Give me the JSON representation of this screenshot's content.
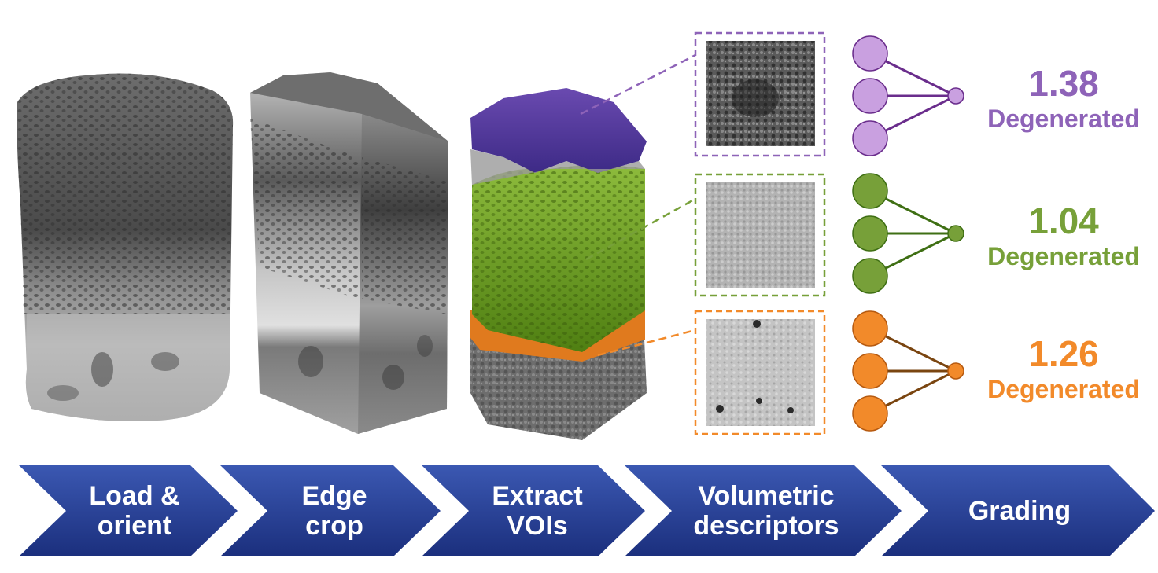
{
  "colors": {
    "purple": "#8e63b8",
    "purple_dark": "#6a2d8c",
    "purple_light": "#c9a0e0",
    "green": "#77a039",
    "green_dark": "#3f6f14",
    "orange": "#f28a2a",
    "orange_dark": "#7a4510",
    "chevron_top": "#3b58b2",
    "chevron_bottom": "#1b2f7d"
  },
  "pipeline": [
    {
      "line1": "Load &",
      "line2": "orient"
    },
    {
      "line1": "Edge",
      "line2": "crop"
    },
    {
      "line1": "Extract",
      "line2": "VOIs"
    },
    {
      "line1": "Volumetric",
      "line2": "descriptors"
    },
    {
      "line1": "Grading",
      "line2": ""
    }
  ],
  "results": [
    {
      "score": "1.38",
      "label": "Degenerated",
      "color": "#8e63b8"
    },
    {
      "score": "1.04",
      "label": "Degenerated",
      "color": "#77a039"
    },
    {
      "score": "1.26",
      "label": "Degenerated",
      "color": "#f28a2a"
    }
  ]
}
